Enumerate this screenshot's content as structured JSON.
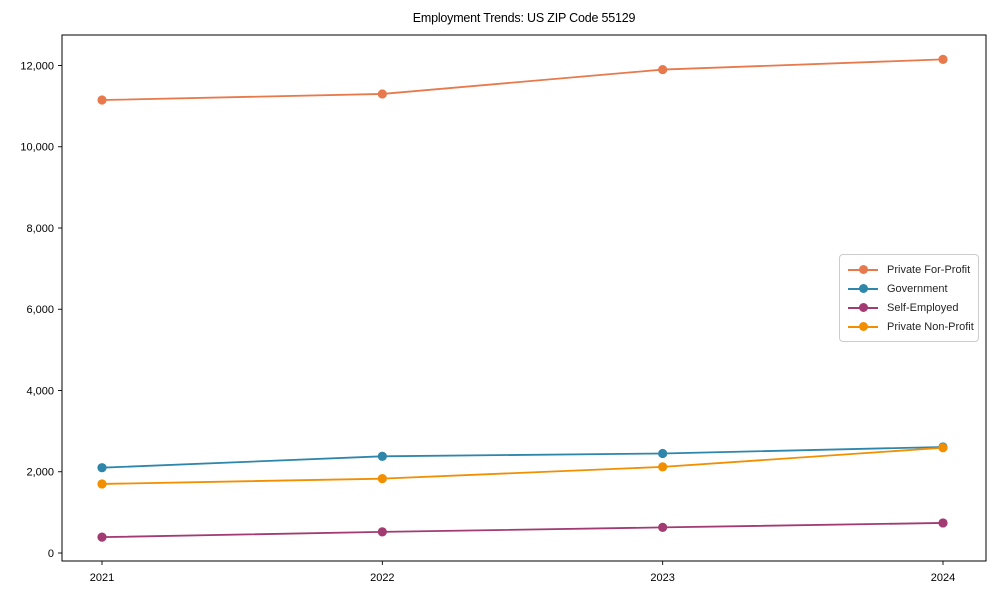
{
  "figure": {
    "background": "#ffffff",
    "text_color": "#000000",
    "spine_color": "#000000"
  },
  "chart_data": {
    "type": "line",
    "title": "Employment Trends: US ZIP Code 55129",
    "xlabel": "",
    "ylabel": "",
    "categories": [
      "2021",
      "2022",
      "2023",
      "2024"
    ],
    "series": [
      {
        "name": "Private For-Profit",
        "color": "#E8794C",
        "values": [
          11150,
          11300,
          11900,
          12150
        ]
      },
      {
        "name": "Government",
        "color": "#2E86AB",
        "values": [
          2100,
          2380,
          2450,
          2610
        ]
      },
      {
        "name": "Self-Employed",
        "color": "#A23B72",
        "values": [
          390,
          520,
          630,
          740
        ]
      },
      {
        "name": "Private Non-Profit",
        "color": "#F18F01",
        "values": [
          1700,
          1830,
          2120,
          2590
        ]
      }
    ],
    "yticks": [
      0,
      2000,
      4000,
      6000,
      8000,
      10000,
      12000
    ],
    "ytick_labels": [
      "0",
      "2,000",
      "4,000",
      "6,000",
      "8,000",
      "10,000",
      "12,000"
    ],
    "ylim": [
      -200,
      12750
    ],
    "grid": false,
    "legend_position": "center-right",
    "marker": "circle"
  }
}
